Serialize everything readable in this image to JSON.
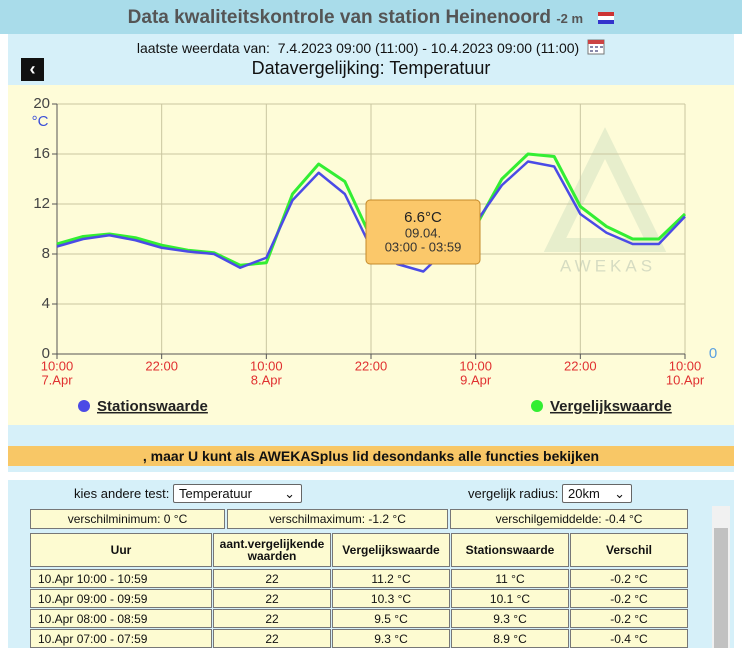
{
  "header": {
    "title": "Data kwaliteitskontrole van station Heinenoord",
    "elevation": "-2 m"
  },
  "subtitle": {
    "label": "laatste weerdata van:",
    "range": "7.4.2023 09:00 (11:00) - 10.4.2023 09:00 (11:00)"
  },
  "chart_data": {
    "type": "line",
    "title": "Datavergelijking: Temperatuur",
    "y_unit": "°C",
    "x": [
      0,
      3,
      6,
      9,
      12,
      15,
      18,
      21,
      24,
      27,
      30,
      33,
      36,
      39,
      42,
      45,
      48,
      51,
      54,
      57,
      60,
      63,
      66,
      69,
      72
    ],
    "xlim": [
      0,
      72
    ],
    "xticks": [
      {
        "value": 0,
        "label": "10:00",
        "date": "7.Apr"
      },
      {
        "value": 12,
        "label": "22:00"
      },
      {
        "value": 24,
        "label": "10:00",
        "date": "8.Apr"
      },
      {
        "value": 36,
        "label": "22:00"
      },
      {
        "value": 48,
        "label": "10:00",
        "date": "9.Apr"
      },
      {
        "value": 60,
        "label": "22:00"
      },
      {
        "value": 72,
        "label": "10:00",
        "date": "10.Apr"
      }
    ],
    "ylim": [
      0,
      20
    ],
    "yticks": [
      0,
      4,
      8,
      12,
      16,
      20
    ],
    "y2ticks": [
      0
    ],
    "grid": true,
    "series": [
      {
        "name": "Vergelijkswaarde",
        "color": "#33ee33",
        "values": [
          8.8,
          9.4,
          9.6,
          9.3,
          8.7,
          8.3,
          8.1,
          7.1,
          7.3,
          12.8,
          15.2,
          13.8,
          9.3,
          8.0,
          7.5,
          9.0,
          10.2,
          14.0,
          16.0,
          15.8,
          11.8,
          10.2,
          9.2,
          9.2,
          11.2
        ]
      },
      {
        "name": "Stationswaarde",
        "color": "#4b4be6",
        "values": [
          8.6,
          9.2,
          9.5,
          9.1,
          8.5,
          8.2,
          8.0,
          6.9,
          7.7,
          12.3,
          14.5,
          12.8,
          8.5,
          7.2,
          6.6,
          8.6,
          10.5,
          13.5,
          15.4,
          15.0,
          11.2,
          9.7,
          8.8,
          8.8,
          11.0
        ]
      }
    ],
    "tooltip": {
      "value": "6.6°C",
      "date": "09.04.",
      "time": "03:00 - 03:59"
    },
    "watermark": "AWEKAS"
  },
  "banner": ", maar U kunt als AWEKASplus lid desondanks alle functies bekijken",
  "controls": {
    "test_label": "kies andere test:",
    "test_value": "Temperatuur",
    "radius_label": "vergelijk radius:",
    "radius_value": "20km"
  },
  "stats": [
    "verschilminimum: 0 °C",
    "verschilmaximum: -1.2 °C",
    "verschilgemiddelde: -0.4 °C"
  ],
  "table": {
    "columns": [
      "Uur",
      "aant.vergelijkende waarden",
      "Vergelijkswaarde",
      "Stationswaarde",
      "Verschil"
    ],
    "rows": [
      [
        "10.Apr 10:00 - 10:59",
        22,
        "11.2 °C",
        "11 °C",
        "-0.2 °C"
      ],
      [
        "10.Apr 09:00 - 09:59",
        22,
        "10.3 °C",
        "10.1 °C",
        "-0.2 °C"
      ],
      [
        "10.Apr 08:00 - 08:59",
        22,
        "9.5 °C",
        "9.3 °C",
        "-0.2 °C"
      ],
      [
        "10.Apr 07:00 - 07:59",
        22,
        "9.3 °C",
        "8.9 °C",
        "-0.4 °C"
      ]
    ]
  }
}
